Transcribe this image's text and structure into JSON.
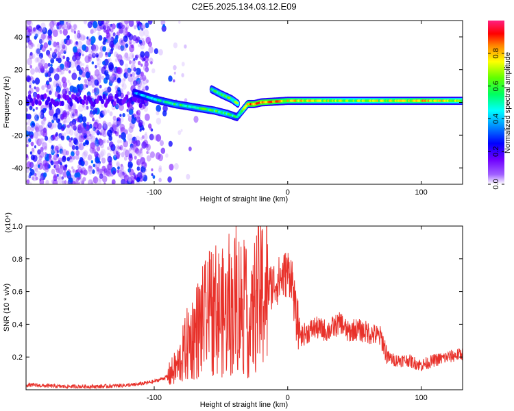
{
  "title": "C2E5.2025.134.03.12.E09",
  "chart_data": [
    {
      "type": "heatmap",
      "xlabel": "Height of straight line (km)",
      "ylabel": "Frequency (Hz)",
      "xlim": [
        -196,
        131
      ],
      "ylim": [
        -50,
        50
      ],
      "x_ticks": [
        -100,
        0,
        100
      ],
      "y_ticks": [
        -40,
        -20,
        0,
        20,
        40
      ],
      "colorbar": {
        "label": "Normalized spectral amplitude",
        "range": [
          0,
          1
        ],
        "ticks": [
          "0.0",
          "0.2",
          "0.4",
          "0.6",
          "0.8"
        ],
        "tick_values": [
          0.0,
          0.2,
          0.4,
          0.6,
          0.8
        ],
        "colors": [
          "#ffffff",
          "#8000ff",
          "#0000ff",
          "#00ffff",
          "#00ff00",
          "#ffff00",
          "#ff8000",
          "#ff0000",
          "#ff00c0"
        ]
      },
      "trace": {
        "x": [
          -115,
          -100,
          -85,
          -70,
          -55,
          -45,
          -38,
          -30,
          -25,
          -20,
          0,
          50,
          100,
          131
        ],
        "frequency": [
          6,
          2,
          -1,
          -3,
          -5,
          -7,
          -9,
          -1,
          -1,
          0,
          1,
          1,
          1,
          1
        ],
        "amplitude": [
          0.3,
          0.4,
          0.45,
          0.45,
          0.5,
          0.5,
          0.4,
          0.7,
          0.8,
          0.8,
          0.7,
          0.6,
          0.7,
          0.6
        ]
      },
      "secondary_trace": {
        "x": [
          -57,
          -50,
          -42,
          -37
        ],
        "frequency": [
          8,
          5,
          2,
          -1
        ],
        "amplitude": [
          0.45,
          0.5,
          0.5,
          0.6
        ]
      },
      "noise_region": {
        "x_from": -196,
        "x_to": -105
      }
    },
    {
      "type": "line",
      "xlabel": "Height of straight line (km)",
      "ylabel": "SNR (10 * v/v)",
      "y_multiplier": "(x10⁴)",
      "xlim": [
        -196,
        131
      ],
      "ylim": [
        0,
        1.0
      ],
      "x_ticks": [
        -100,
        0,
        100
      ],
      "y_ticks": [
        0.2,
        0.4,
        0.6,
        0.8,
        1.0
      ],
      "line_color": "#e8312a",
      "series": [
        {
          "x": [
            -196,
            -170,
            -140,
            -115,
            -100,
            -90,
            -82,
            -75,
            -65,
            -55,
            -45,
            -38,
            -32,
            -28,
            -24,
            -20,
            -15,
            -10,
            -5,
            0,
            3,
            6,
            10,
            15,
            20,
            30,
            40,
            45,
            50,
            60,
            70,
            75,
            80,
            90,
            100,
            110,
            120,
            131
          ],
          "y": [
            0.03,
            0.02,
            0.02,
            0.03,
            0.05,
            0.08,
            0.15,
            0.28,
            0.4,
            0.5,
            0.45,
            0.55,
            0.5,
            0.35,
            0.55,
            0.58,
            0.62,
            0.65,
            0.68,
            0.72,
            0.7,
            0.45,
            0.33,
            0.35,
            0.38,
            0.36,
            0.41,
            0.35,
            0.37,
            0.35,
            0.32,
            0.2,
            0.18,
            0.18,
            0.15,
            0.18,
            0.2,
            0.22
          ]
        }
      ]
    }
  ]
}
